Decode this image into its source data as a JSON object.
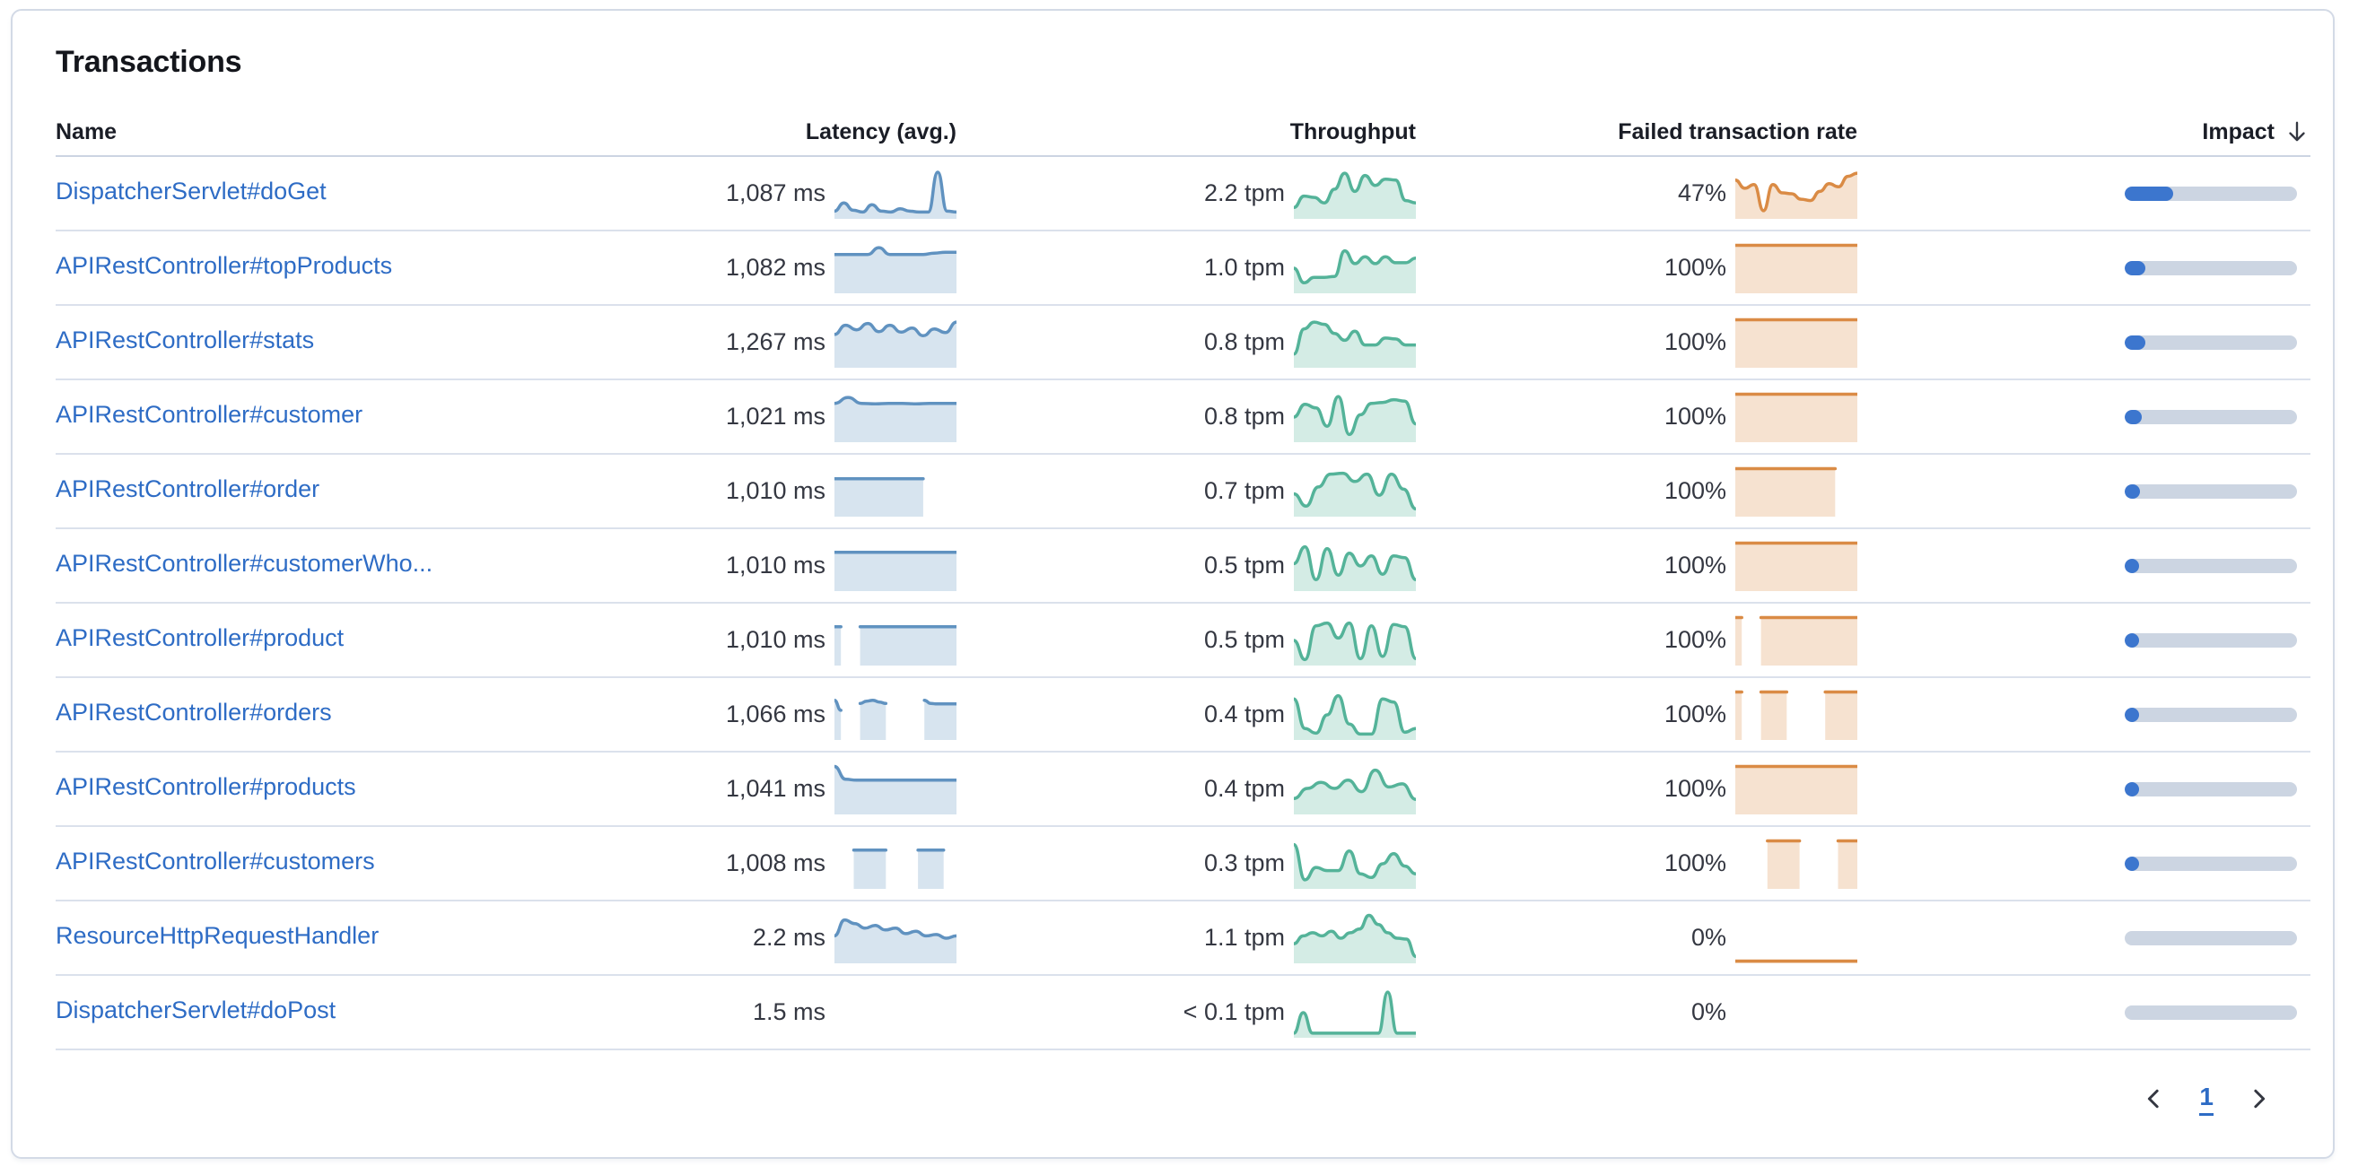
{
  "panel": {
    "title": "Transactions"
  },
  "colors": {
    "latency_series": "#6092C0",
    "throughput_series": "#54B399",
    "failed_series": "#DA8B45",
    "impact_fill": "#3C76CE",
    "impact_track": "#CCD5E2",
    "link": "#2E6CC5",
    "header_text": "#1A1D26",
    "body_text": "#343741"
  },
  "table": {
    "columns": {
      "name": "Name",
      "latency": "Latency (avg.)",
      "throughput": "Throughput",
      "failed": "Failed transaction rate",
      "impact": "Impact"
    },
    "sort": {
      "column": "impact",
      "direction": "desc",
      "icon": "arrow-down"
    },
    "rows": [
      {
        "name": "DispatcherServlet#doGet",
        "latency": {
          "value": "1,087 ms",
          "points": [
            0.12,
            0.3,
            0.14,
            0.1,
            0.26,
            0.12,
            0.1,
            0.17,
            0.12,
            0.1,
            0.1,
            0.97,
            0.12,
            0.1
          ]
        },
        "throughput": {
          "value": "2.2 tpm",
          "points": [
            0.2,
            0.45,
            0.42,
            0.3,
            0.6,
            0.95,
            0.55,
            0.9,
            0.68,
            0.82,
            0.8,
            0.35,
            0.3
          ]
        },
        "failed": {
          "value": "47%",
          "points": [
            0.8,
            0.62,
            0.7,
            0.13,
            0.7,
            0.52,
            0.5,
            0.38,
            0.35,
            0.55,
            0.72,
            0.65,
            0.88,
            0.95
          ]
        },
        "impact_percent": 28
      },
      {
        "name": "APIRestController#topProducts",
        "latency": {
          "value": "1,082 ms",
          "points": [
            0.8,
            0.8,
            0.8,
            0.8,
            0.95,
            0.8,
            0.8,
            0.8,
            0.8,
            0.83,
            0.85,
            0.85
          ]
        },
        "throughput": {
          "value": "1.0 tpm",
          "points": [
            0.5,
            0.18,
            0.3,
            0.3,
            0.32,
            0.88,
            0.6,
            0.75,
            0.6,
            0.75,
            0.62,
            0.62,
            0.72
          ]
        },
        "failed": {
          "value": "100%",
          "points": [
            1,
            1,
            1,
            1,
            1,
            1,
            1,
            1,
            1,
            1,
            1,
            1
          ]
        },
        "impact_percent": 12
      },
      {
        "name": "APIRestController#stats",
        "latency": {
          "value": "1,267 ms",
          "points": [
            0.68,
            0.88,
            0.78,
            0.92,
            0.74,
            0.88,
            0.73,
            0.82,
            0.65,
            0.8,
            0.72,
            0.95
          ]
        },
        "throughput": {
          "value": "0.8 tpm",
          "points": [
            0.25,
            0.8,
            0.95,
            0.9,
            0.7,
            0.55,
            0.75,
            0.45,
            0.45,
            0.6,
            0.58,
            0.45,
            0.45
          ]
        },
        "failed": {
          "value": "100%",
          "points": [
            1,
            1,
            1,
            1,
            1,
            1,
            1,
            1,
            1,
            1,
            1,
            1
          ]
        },
        "impact_percent": 12
      },
      {
        "name": "APIRestController#customer",
        "latency": {
          "value": "1,021 ms",
          "points": [
            0.8,
            0.93,
            0.8,
            0.79,
            0.8,
            0.8,
            0.79,
            0.8,
            0.8,
            0.8
          ]
        },
        "throughput": {
          "value": "0.8 tpm",
          "points": [
            0.5,
            0.78,
            0.7,
            0.3,
            0.95,
            0.12,
            0.55,
            0.8,
            0.82,
            0.88,
            0.85,
            0.35
          ]
        },
        "failed": {
          "value": "100%",
          "points": [
            1,
            1,
            1,
            1,
            1,
            1,
            1,
            1,
            1,
            1,
            1,
            1
          ]
        },
        "impact_percent": 10
      },
      {
        "name": "APIRestController#order",
        "latency": {
          "value": "1,010 ms",
          "points": [
            0.78,
            0.78,
            0.78,
            0.78,
            0.78,
            0.78,
            0.78,
            0.78,
            0.78,
            null,
            null,
            null
          ]
        },
        "throughput": {
          "value": "0.7 tpm",
          "points": [
            0.45,
            0.18,
            0.6,
            0.88,
            0.9,
            0.72,
            0.88,
            0.42,
            0.88,
            0.55,
            0.12
          ]
        },
        "failed": {
          "value": "100%",
          "points": [
            1,
            1,
            1,
            1,
            1,
            1,
            1,
            1,
            1,
            1,
            null,
            null
          ]
        },
        "impact_percent": 9
      },
      {
        "name": "APIRestController#customerWho...",
        "latency": {
          "value": "1,010 ms",
          "points": [
            0.8,
            0.8,
            0.8,
            0.8,
            0.8,
            0.8,
            0.8,
            0.8,
            0.8,
            0.8,
            0.8,
            0.8
          ]
        },
        "throughput": {
          "value": "0.5 tpm",
          "points": [
            0.55,
            0.92,
            0.2,
            0.88,
            0.3,
            0.78,
            0.5,
            0.72,
            0.32,
            0.72,
            0.68,
            0.2
          ]
        },
        "failed": {
          "value": "100%",
          "points": [
            1,
            1,
            1,
            1,
            1,
            1,
            1,
            1,
            1,
            1,
            1,
            1
          ]
        },
        "impact_percent": 7
      },
      {
        "name": "APIRestController#product",
        "latency": {
          "value": "1,010 ms",
          "points": [
            0.8,
            0.8,
            null,
            null,
            0.8,
            0.8,
            0.8,
            0.8,
            0.8,
            0.8,
            0.8,
            0.8,
            0.8,
            0.8,
            0.8,
            0.8,
            0.8,
            0.8,
            0.8,
            0.8
          ]
        },
        "throughput": {
          "value": "0.5 tpm",
          "points": [
            0.5,
            0.08,
            0.82,
            0.88,
            0.55,
            0.88,
            0.1,
            0.82,
            0.15,
            0.85,
            0.8,
            0.1
          ]
        },
        "failed": {
          "value": "100%",
          "points": [
            1,
            1,
            null,
            null,
            1,
            1,
            1,
            1,
            1,
            1,
            1,
            1,
            1,
            1,
            1,
            1,
            1,
            1,
            1,
            1
          ]
        },
        "impact_percent": 7
      },
      {
        "name": "APIRestController#orders",
        "latency": {
          "value": "1,066 ms",
          "points": [
            0.82,
            0.6,
            null,
            null,
            0.75,
            0.8,
            0.82,
            0.78,
            0.75,
            null,
            null,
            null,
            null,
            null,
            0.82,
            0.75,
            0.74,
            0.74,
            0.74,
            0.74
          ]
        },
        "throughput": {
          "value": "0.4 tpm",
          "points": [
            0.85,
            0.2,
            0.1,
            0.5,
            0.92,
            0.3,
            0.08,
            0.08,
            0.85,
            0.78,
            0.12,
            0.2
          ]
        },
        "failed": {
          "value": "100%",
          "points": [
            1,
            1,
            null,
            null,
            1,
            1,
            1,
            1,
            1,
            null,
            null,
            null,
            null,
            null,
            1,
            1,
            1,
            1,
            1,
            1
          ]
        },
        "impact_percent": 6
      },
      {
        "name": "APIRestController#products",
        "latency": {
          "value": "1,041 ms",
          "points": [
            1.0,
            0.72,
            0.7,
            0.7,
            0.7,
            0.7,
            0.7,
            0.7,
            0.7,
            0.7,
            0.7,
            0.7
          ]
        },
        "throughput": {
          "value": "0.4 tpm",
          "points": [
            0.3,
            0.52,
            0.65,
            0.52,
            0.7,
            0.45,
            0.92,
            0.55,
            0.62,
            0.28
          ]
        },
        "failed": {
          "value": "100%",
          "points": [
            1,
            1,
            1,
            1,
            1,
            1,
            1,
            1,
            1,
            1,
            1,
            1
          ]
        },
        "impact_percent": 6
      },
      {
        "name": "APIRestController#customers",
        "latency": {
          "value": "1,008 ms",
          "points": [
            null,
            null,
            null,
            0.8,
            0.8,
            0.8,
            0.8,
            0.8,
            0.8,
            null,
            null,
            null,
            null,
            0.8,
            0.8,
            0.8,
            0.8,
            0.8,
            null,
            null
          ]
        },
        "throughput": {
          "value": "0.3 tpm",
          "points": [
            0.92,
            0.15,
            0.42,
            0.35,
            0.35,
            0.78,
            0.28,
            0.2,
            0.5,
            0.72,
            0.45,
            0.28
          ]
        },
        "failed": {
          "value": "100%",
          "points": [
            null,
            null,
            null,
            null,
            null,
            1,
            1,
            1,
            1,
            1,
            1,
            null,
            null,
            null,
            null,
            null,
            1,
            1,
            1,
            1
          ]
        },
        "impact_percent": 5
      },
      {
        "name": "ResourceHttpRequestHandler",
        "latency": {
          "value": "2.2 ms",
          "points": [
            0.55,
            0.9,
            0.82,
            0.72,
            0.78,
            0.68,
            0.72,
            0.6,
            0.65,
            0.55,
            0.58,
            0.5,
            0.55
          ]
        },
        "throughput": {
          "value": "1.1 tpm",
          "points": [
            0.38,
            0.55,
            0.62,
            0.55,
            0.65,
            0.5,
            0.62,
            0.7,
            1.0,
            0.8,
            0.62,
            0.5,
            0.48,
            0.1
          ]
        },
        "failed": {
          "value": "0%",
          "points": [
            0,
            0,
            0,
            0,
            0,
            0,
            0,
            0,
            0,
            0,
            0,
            0
          ]
        },
        "impact_percent": 0
      },
      {
        "name": "DispatcherServlet#doPost",
        "latency": {
          "value": "1.5 ms",
          "points": null
        },
        "throughput": {
          "value": "< 0.1 tpm",
          "points": [
            0.05,
            0.5,
            0.05,
            0.05,
            0.05,
            0.05,
            0.05,
            0.05,
            0.05,
            0.05,
            0.95,
            0.05,
            0.05,
            0.05
          ]
        },
        "failed": {
          "value": "0%",
          "points": null
        },
        "impact_percent": 0
      }
    ]
  },
  "pagination": {
    "prev_icon": "chevron-left",
    "page": "1",
    "next_icon": "chevron-right"
  }
}
